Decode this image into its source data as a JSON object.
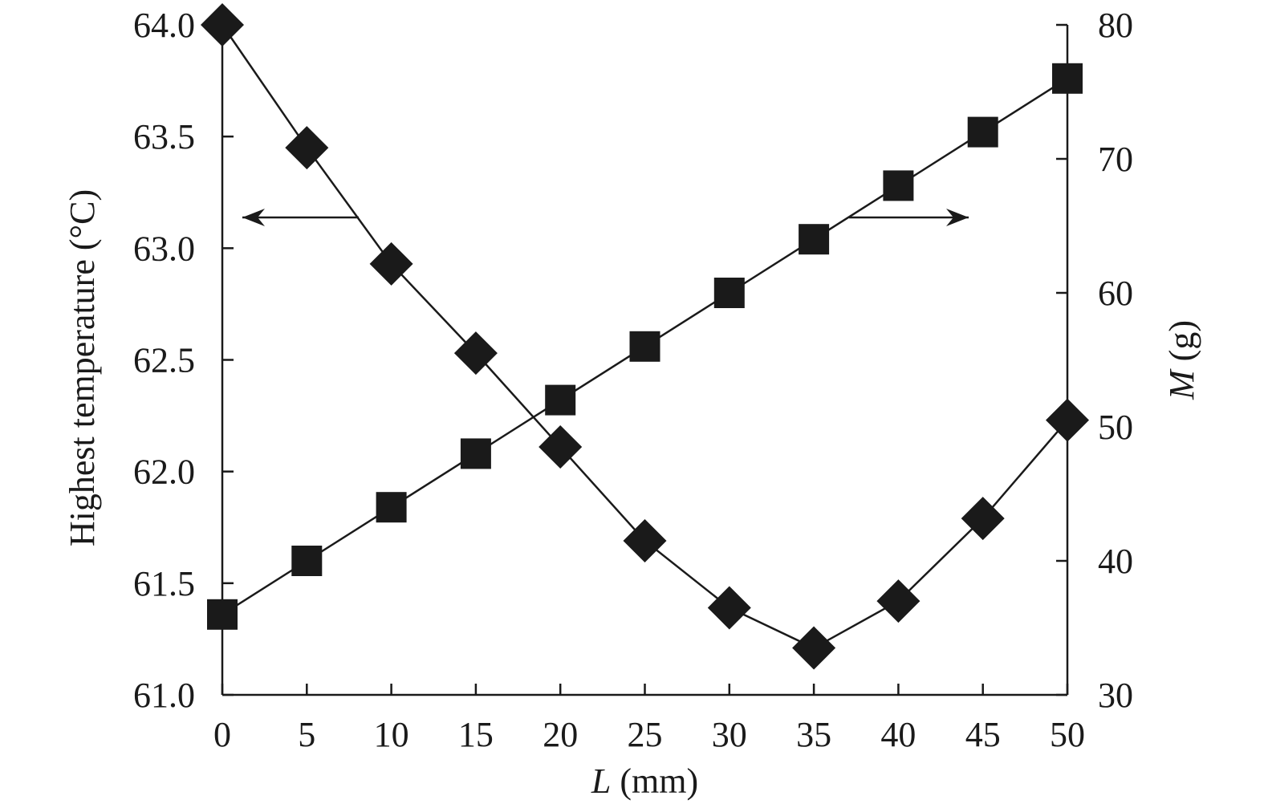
{
  "chart_data": {
    "type": "line",
    "x": [
      0,
      5,
      10,
      15,
      20,
      25,
      30,
      35,
      40,
      45,
      50
    ],
    "xlabel_italic": "L",
    "xlabel_rest": " (mm)",
    "xlim": [
      0,
      50
    ],
    "xticks": [
      "0",
      "5",
      "10",
      "15",
      "20",
      "25",
      "30",
      "35",
      "40",
      "45",
      "50"
    ],
    "y_left": {
      "label": "Highest temperature (°C)",
      "lim": [
        61.0,
        64.0
      ],
      "ticks": [
        61.0,
        61.5,
        62.0,
        62.5,
        63.0,
        63.5,
        64.0
      ],
      "tick_labels": [
        "61.0",
        "61.5",
        "62.0",
        "62.5",
        "63.0",
        "63.5",
        "64.0"
      ]
    },
    "y_right": {
      "label_italic": "M",
      "label_rest": " (g)",
      "lim": [
        30,
        80
      ],
      "ticks": [
        30,
        40,
        50,
        60,
        70,
        80
      ],
      "tick_labels": [
        "30",
        "40",
        "50",
        "60",
        "70",
        "80"
      ]
    },
    "series": [
      {
        "axis": "left",
        "marker": "diamond",
        "values": [
          64.0,
          63.45,
          62.93,
          62.53,
          62.11,
          61.69,
          61.39,
          61.21,
          61.42,
          61.79,
          62.23
        ]
      },
      {
        "axis": "right",
        "marker": "square",
        "values": [
          36,
          40,
          44,
          48,
          52,
          56,
          60,
          64,
          68,
          72,
          76
        ]
      }
    ],
    "annotations": [
      {
        "type": "arrow",
        "direction": "left",
        "points_to_axis": "left"
      },
      {
        "type": "arrow",
        "direction": "right",
        "points_to_axis": "right"
      }
    ],
    "grid": false,
    "legend": "none",
    "colors": {
      "ink": "#1a1a1a"
    }
  }
}
